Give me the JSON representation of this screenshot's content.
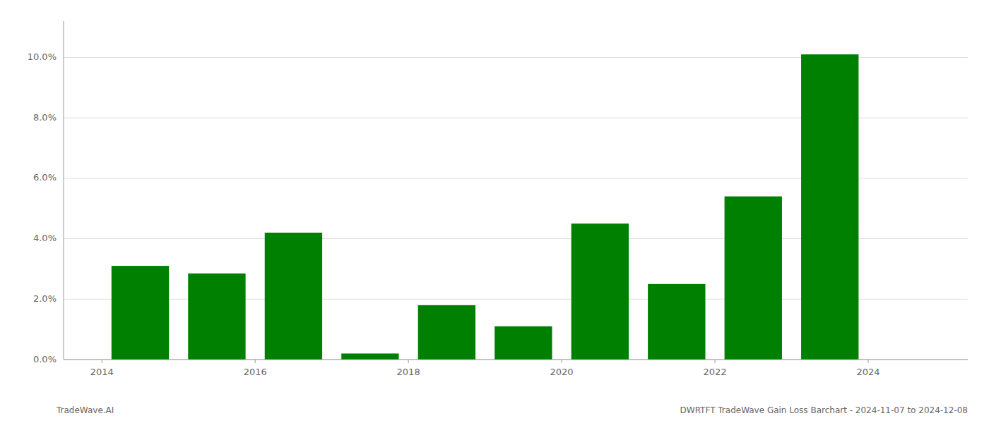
{
  "chart_data": {
    "type": "bar",
    "x": [
      2014,
      2015,
      2016,
      2017,
      2018,
      2019,
      2020,
      2021,
      2022,
      2023
    ],
    "values": [
      0.031,
      0.0285,
      0.042,
      0.002,
      0.018,
      0.011,
      0.045,
      0.025,
      0.054,
      0.101
    ],
    "color": "#008000",
    "xlim": [
      2013.0,
      2024.8
    ],
    "xticks": [
      {
        "value": 2013.5,
        "label": "2014"
      },
      {
        "value": 2015.5,
        "label": "2016"
      },
      {
        "value": 2017.5,
        "label": "2018"
      },
      {
        "value": 2019.5,
        "label": "2020"
      },
      {
        "value": 2021.5,
        "label": "2022"
      },
      {
        "value": 2023.5,
        "label": "2024"
      }
    ],
    "ylim": [
      0,
      0.112
    ],
    "yticks": [
      {
        "value": 0.0,
        "label": "0.0%"
      },
      {
        "value": 0.02,
        "label": "2.0%"
      },
      {
        "value": 0.04,
        "label": "4.0%"
      },
      {
        "value": 0.06,
        "label": "6.0%"
      },
      {
        "value": 0.08,
        "label": "8.0%"
      },
      {
        "value": 0.1,
        "label": "10.0%"
      }
    ],
    "grid": true,
    "annotations": [
      "TradeWave.AI",
      "DWRTFT TradeWave Gain Loss Barchart - 2024-11-07 to 2024-12-08"
    ]
  }
}
